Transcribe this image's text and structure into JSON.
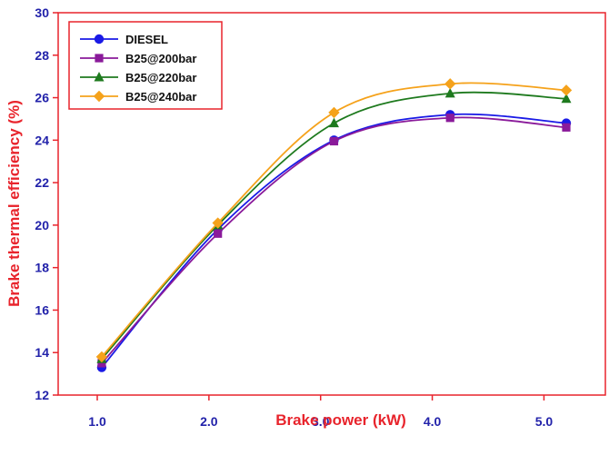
{
  "chart_data": {
    "type": "line",
    "title": "",
    "xlabel": "Brake power (kW)",
    "ylabel": "Brake thermal efficiency (%)",
    "xlim": [
      0.65,
      5.55
    ],
    "ylim": [
      12,
      30
    ],
    "xticks": [
      1.0,
      2.0,
      3.0,
      4.0,
      5.0
    ],
    "xtick_labels": [
      "1.0",
      "2.0",
      "3.0",
      "4.0",
      "5.0"
    ],
    "yticks": [
      12,
      14,
      16,
      18,
      20,
      22,
      24,
      26,
      28,
      30
    ],
    "ytick_labels": [
      "12",
      "14",
      "16",
      "18",
      "20",
      "22",
      "24",
      "26",
      "28",
      "30"
    ],
    "grid": false,
    "legend_position": "top-left",
    "x": [
      1.04,
      2.08,
      3.12,
      4.16,
      5.2
    ],
    "series": [
      {
        "name": "DIESEL",
        "values": [
          13.3,
          19.8,
          24.0,
          25.2,
          24.8
        ],
        "color": "#1a1ae6",
        "marker": "circle"
      },
      {
        "name": "B25@200bar",
        "values": [
          13.5,
          19.6,
          23.95,
          25.05,
          24.6
        ],
        "color": "#8a1a9a",
        "marker": "square"
      },
      {
        "name": "B25@220bar",
        "values": [
          13.7,
          20.0,
          24.8,
          26.2,
          25.95
        ],
        "color": "#1e7a1e",
        "marker": "triangle"
      },
      {
        "name": "B25@240bar",
        "values": [
          13.8,
          20.1,
          25.3,
          26.65,
          26.35
        ],
        "color": "#f5a21b",
        "marker": "diamond"
      }
    ],
    "axis_color": "#e8242c",
    "tick_label_color": "#2222aa",
    "title_color": "#e8242c"
  }
}
